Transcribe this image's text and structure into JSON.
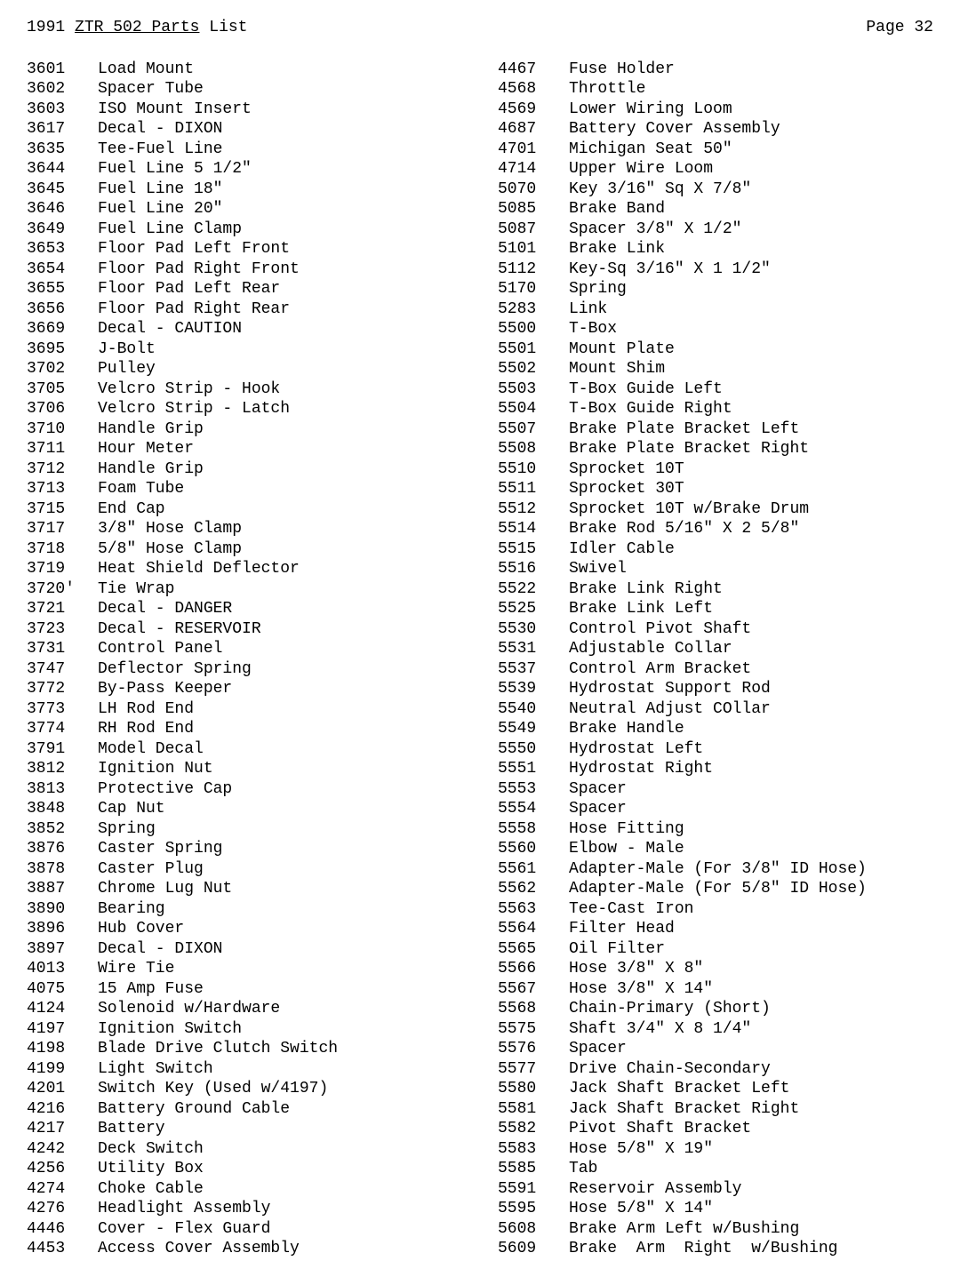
{
  "header": {
    "year": "1991",
    "model": "ZTR 502 Parts",
    "suffix": "List",
    "page_label": "Page 32"
  },
  "left": [
    {
      "n": "3601",
      "d": "Load Mount"
    },
    {
      "n": "3602",
      "d": "Spacer Tube"
    },
    {
      "n": "3603",
      "d": "ISO Mount Insert"
    },
    {
      "n": "3617",
      "d": "Decal - DIXON"
    },
    {
      "n": "3635",
      "d": "Tee-Fuel Line"
    },
    {
      "n": "3644",
      "d": "Fuel Line 5 1/2\""
    },
    {
      "n": "3645",
      "d": "Fuel Line 18\""
    },
    {
      "n": "3646",
      "d": "Fuel Line 20\""
    },
    {
      "n": "3649",
      "d": "Fuel Line Clamp"
    },
    {
      "n": "3653",
      "d": "Floor Pad Left Front"
    },
    {
      "n": "3654",
      "d": "Floor Pad Right Front"
    },
    {
      "n": "3655",
      "d": "Floor Pad Left Rear"
    },
    {
      "n": "3656",
      "d": "Floor Pad Right Rear"
    },
    {
      "n": "3669",
      "d": "Decal - CAUTION"
    },
    {
      "n": "3695",
      "d": "J-Bolt"
    },
    {
      "n": "3702",
      "d": "Pulley"
    },
    {
      "n": "3705",
      "d": "Velcro Strip - Hook"
    },
    {
      "n": "3706",
      "d": "Velcro Strip - Latch"
    },
    {
      "n": "3710",
      "d": "Handle Grip"
    },
    {
      "n": "3711",
      "d": "Hour Meter"
    },
    {
      "n": "3712",
      "d": "Handle Grip"
    },
    {
      "n": "3713",
      "d": "Foam Tube"
    },
    {
      "n": "3715",
      "d": "End Cap"
    },
    {
      "n": "3717",
      "d": "3/8\" Hose Clamp"
    },
    {
      "n": "3718",
      "d": "5/8\" Hose Clamp"
    },
    {
      "n": "3719",
      "d": "Heat Shield Deflector"
    },
    {
      "n": "3720'",
      "d": "Tie Wrap"
    },
    {
      "n": "3721",
      "d": "Decal - DANGER"
    },
    {
      "n": "3723",
      "d": "Decal - RESERVOIR"
    },
    {
      "n": "3731",
      "d": "Control Panel"
    },
    {
      "n": "3747",
      "d": "Deflector Spring"
    },
    {
      "n": "3772",
      "d": "By-Pass Keeper"
    },
    {
      "n": "3773",
      "d": "LH Rod End"
    },
    {
      "n": "3774",
      "d": "RH Rod End"
    },
    {
      "n": "3791",
      "d": "Model Decal"
    },
    {
      "n": "3812",
      "d": "Ignition Nut"
    },
    {
      "n": "3813",
      "d": "Protective Cap"
    },
    {
      "n": "3848",
      "d": "Cap Nut"
    },
    {
      "n": "3852",
      "d": "Spring"
    },
    {
      "n": "3876",
      "d": "Caster Spring"
    },
    {
      "n": "3878",
      "d": "Caster Plug"
    },
    {
      "n": "3887",
      "d": "Chrome Lug Nut"
    },
    {
      "n": "3890",
      "d": "Bearing"
    },
    {
      "n": "3896",
      "d": "Hub Cover"
    },
    {
      "n": "3897",
      "d": "Decal - DIXON"
    },
    {
      "n": "4013",
      "d": "Wire Tie"
    },
    {
      "n": "4075",
      "d": "15 Amp Fuse"
    },
    {
      "n": "4124",
      "d": "Solenoid w/Hardware"
    },
    {
      "n": "4197",
      "d": "Ignition Switch"
    },
    {
      "n": "4198",
      "d": "Blade Drive Clutch Switch"
    },
    {
      "n": "4199",
      "d": "Light Switch"
    },
    {
      "n": "4201",
      "d": "Switch Key (Used w/4197)"
    },
    {
      "n": "4216",
      "d": "Battery Ground Cable"
    },
    {
      "n": "4217",
      "d": "Battery"
    },
    {
      "n": "4242",
      "d": "Deck Switch"
    },
    {
      "n": "4256",
      "d": "Utility Box"
    },
    {
      "n": "4274",
      "d": "Choke Cable"
    },
    {
      "n": "4276",
      "d": "Headlight Assembly"
    },
    {
      "n": "4446",
      "d": "Cover - Flex Guard"
    },
    {
      "n": "4453",
      "d": "Access Cover Assembly"
    }
  ],
  "right": [
    {
      "n": "4467",
      "d": "Fuse Holder"
    },
    {
      "n": "4568",
      "d": "Throttle"
    },
    {
      "n": "4569",
      "d": "Lower Wiring Loom"
    },
    {
      "n": "4687",
      "d": "Battery Cover Assembly"
    },
    {
      "n": "4701",
      "d": "Michigan Seat 50\""
    },
    {
      "n": "4714",
      "d": "Upper Wire Loom"
    },
    {
      "n": "5070",
      "d": "Key 3/16\" Sq X 7/8\""
    },
    {
      "n": "5085",
      "d": "Brake Band"
    },
    {
      "n": "5087",
      "d": "Spacer 3/8\" X 1/2\""
    },
    {
      "n": "5101",
      "d": "Brake Link"
    },
    {
      "n": "5112",
      "d": "Key-Sq 3/16\" X 1 1/2\""
    },
    {
      "n": "5170",
      "d": "Spring"
    },
    {
      "n": "5283",
      "d": "Link"
    },
    {
      "n": "5500",
      "d": "T-Box"
    },
    {
      "n": "5501",
      "d": "Mount Plate"
    },
    {
      "n": "5502",
      "d": "Mount Shim"
    },
    {
      "n": "5503",
      "d": "T-Box Guide Left"
    },
    {
      "n": "5504",
      "d": "T-Box Guide Right"
    },
    {
      "n": "5507",
      "d": "Brake Plate Bracket Left"
    },
    {
      "n": "5508",
      "d": "Brake Plate Bracket Right"
    },
    {
      "n": "5510",
      "d": "Sprocket 10T"
    },
    {
      "n": "5511",
      "d": "Sprocket 30T"
    },
    {
      "n": "5512",
      "d": "Sprocket 10T w/Brake Drum"
    },
    {
      "n": "5514",
      "d": "Brake Rod 5/16\" X 2 5/8\""
    },
    {
      "n": "5515",
      "d": "Idler Cable"
    },
    {
      "n": "5516",
      "d": "Swivel"
    },
    {
      "n": "5522",
      "d": "Brake Link Right"
    },
    {
      "n": "5525",
      "d": "Brake Link Left"
    },
    {
      "n": "5530",
      "d": "Control Pivot Shaft"
    },
    {
      "n": "5531",
      "d": "Adjustable Collar"
    },
    {
      "n": "5537",
      "d": "Control Arm Bracket"
    },
    {
      "n": "5539",
      "d": "Hydrostat Support Rod"
    },
    {
      "n": "5540",
      "d": "Neutral Adjust COllar"
    },
    {
      "n": "5549",
      "d": "Brake Handle"
    },
    {
      "n": "5550",
      "d": "Hydrostat Left"
    },
    {
      "n": "5551",
      "d": "Hydrostat Right"
    },
    {
      "n": "5553",
      "d": "Spacer"
    },
    {
      "n": "5554",
      "d": "Spacer"
    },
    {
      "n": "5558",
      "d": "Hose Fitting"
    },
    {
      "n": "5560",
      "d": "Elbow - Male"
    },
    {
      "n": "5561",
      "d": "Adapter-Male (For 3/8\" ID Hose)"
    },
    {
      "n": "5562",
      "d": "Adapter-Male (For 5/8\" ID Hose)"
    },
    {
      "n": "5563",
      "d": "Tee-Cast Iron"
    },
    {
      "n": "5564",
      "d": "Filter Head"
    },
    {
      "n": "5565",
      "d": "Oil Filter"
    },
    {
      "n": "5566",
      "d": "Hose 3/8\" X 8\""
    },
    {
      "n": "5567",
      "d": "Hose 3/8\" X 14\""
    },
    {
      "n": "5568",
      "d": "Chain-Primary (Short)"
    },
    {
      "n": "5575",
      "d": "Shaft 3/4\" X 8 1/4\""
    },
    {
      "n": "5576",
      "d": "Spacer"
    },
    {
      "n": "5577",
      "d": "Drive Chain-Secondary"
    },
    {
      "n": "5580",
      "d": "Jack Shaft Bracket Left"
    },
    {
      "n": "5581",
      "d": "Jack Shaft Bracket Right"
    },
    {
      "n": "5582",
      "d": "Pivot Shaft Bracket"
    },
    {
      "n": "5583",
      "d": "Hose 5/8\" X 19\""
    },
    {
      "n": "5585",
      "d": "Tab"
    },
    {
      "n": "5591",
      "d": "Reservoir Assembly"
    },
    {
      "n": "5595",
      "d": "Hose 5/8\" X 14\""
    },
    {
      "n": "5608",
      "d": "Brake Arm Left w/Bushing"
    },
    {
      "n": "5609",
      "d": "Brake  Arm  Right  w/Bushing"
    }
  ]
}
